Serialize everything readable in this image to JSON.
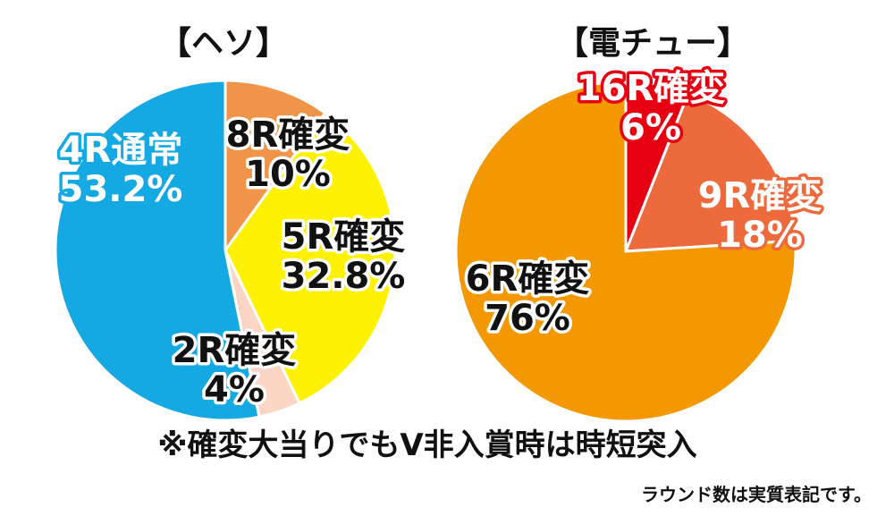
{
  "chart_data": [
    {
      "type": "pie",
      "title": "【ヘソ】",
      "slices": [
        {
          "label": "8R確変",
          "value": 10,
          "value_text": "10%",
          "color": "#f0944a",
          "label_fill": "#111111",
          "label_stroke": "#ffffff"
        },
        {
          "label": "5R確変",
          "value": 32.8,
          "value_text": "32.8%",
          "color": "#fff200",
          "label_fill": "#111111",
          "label_stroke": "#ffffff"
        },
        {
          "label": "2R確変",
          "value": 4,
          "value_text": "4%",
          "color": "#fbd6c4",
          "label_fill": "#111111",
          "label_stroke": "#ffffff"
        },
        {
          "label": "4R通常",
          "value": 53.2,
          "value_text": "53.2%",
          "color": "#15a9e3",
          "label_fill": "#ffffff",
          "label_stroke": "#15a9e3"
        }
      ]
    },
    {
      "type": "pie",
      "title": "【電チュー】",
      "slices": [
        {
          "label": "16R確変",
          "value": 6,
          "value_text": "6%",
          "color": "#e60012",
          "label_fill": "#ffffff",
          "label_stroke": "#e60012"
        },
        {
          "label": "9R確変",
          "value": 18,
          "value_text": "18%",
          "color": "#ec6a3c",
          "label_fill": "#ffffff",
          "label_stroke": "#ec6a3c"
        },
        {
          "label": "6R確変",
          "value": 76,
          "value_text": "76%",
          "color": "#f39800",
          "label_fill": "#111111",
          "label_stroke": "#ffffff"
        }
      ]
    }
  ],
  "notes": {
    "main": "※確変大当りでもV非入賞時は時短突入",
    "footnote": "ラウンド数は実質表記です。"
  }
}
